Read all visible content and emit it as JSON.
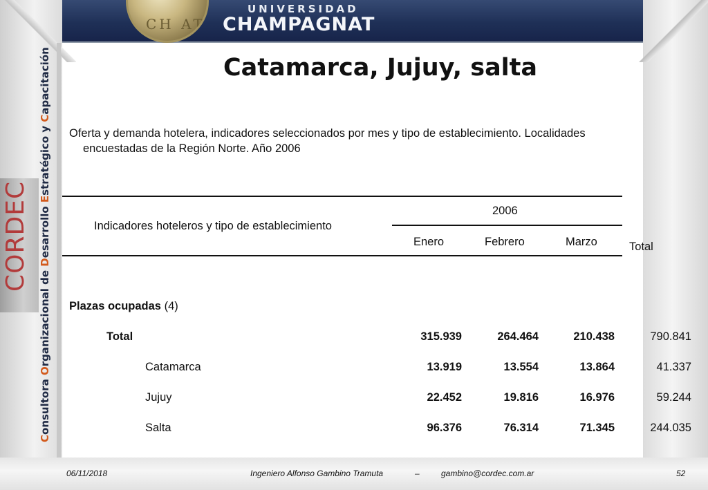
{
  "banner": {
    "university_top": "UNIVERSIDAD",
    "university_main": "CHAMPAGNAT"
  },
  "sidebar": {
    "logo_text": "CORDEC",
    "caption_parts": [
      {
        "cap": "C",
        "rest": "onsultora "
      },
      {
        "cap": "O",
        "rest": "rganizacional de "
      },
      {
        "cap": "D",
        "rest": "esarrollo "
      },
      {
        "cap": "E",
        "rest": "stratégico y "
      },
      {
        "cap": "C",
        "rest": "apacitación"
      }
    ]
  },
  "slide": {
    "title": "Catamarca, Jujuy, salta",
    "subtitle_line1": "Oferta y demanda hotelera, indicadores seleccionados por mes y tipo de establecimiento. Localidades",
    "subtitle_line2": "encuestadas de la Región Norte. Año 2006"
  },
  "table": {
    "header_indicator": "Indicadores hoteleros y tipo de establecimiento",
    "header_year": "2006",
    "months": [
      "Enero",
      "Febrero",
      "Marzo"
    ],
    "header_total": "Total",
    "section_label": "Plazas ocupadas",
    "section_note": " (4)",
    "rows": [
      {
        "label": "Total",
        "values": [
          "315.939",
          "264.464",
          "210.438"
        ],
        "total": "790.841"
      },
      {
        "label": "Catamarca",
        "values": [
          "13.919",
          "13.554",
          "13.864"
        ],
        "total": "41.337"
      },
      {
        "label": "Jujuy",
        "values": [
          "22.452",
          "19.816",
          "16.976"
        ],
        "total": "59.244"
      },
      {
        "label": "Salta",
        "values": [
          "96.376",
          "76.314",
          "71.345"
        ],
        "total": "244.035"
      }
    ]
  },
  "footer": {
    "date": "06/11/2018",
    "author": "Ingeniero Alfonso Gambino Tramuta",
    "separator": "–",
    "email": "gambino@cordec.com.ar",
    "page": "52"
  }
}
